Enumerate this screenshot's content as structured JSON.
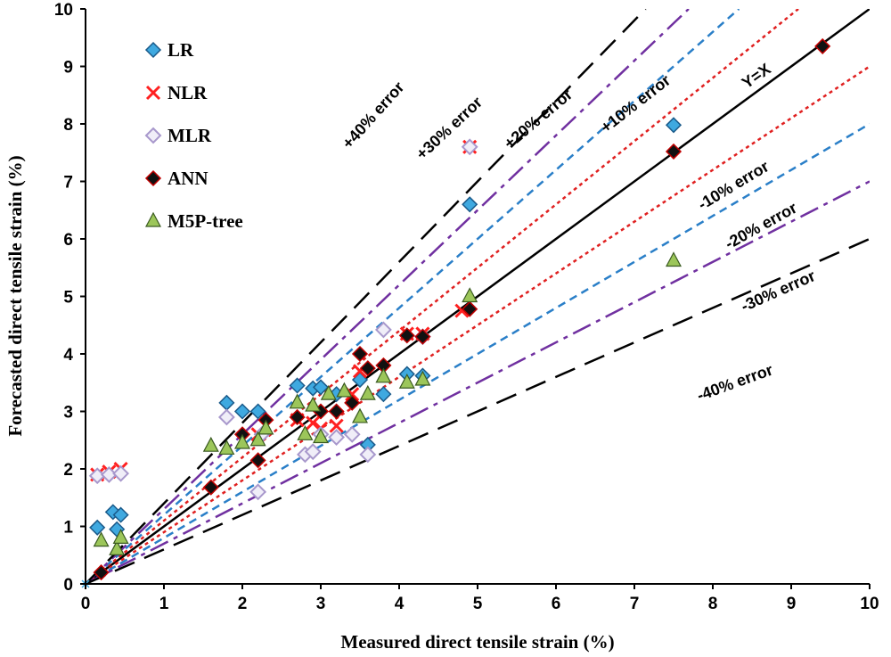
{
  "chart_data": {
    "type": "scatter",
    "title": "",
    "xlabel": "Measured direct tensile strain (%)",
    "ylabel": "Forecasted direct tensile strain (%)",
    "xlim": [
      0,
      10
    ],
    "ylim": [
      0,
      10
    ],
    "xticks": [
      "0",
      "1",
      "2",
      "3",
      "4",
      "5",
      "6",
      "7",
      "8",
      "9",
      "10"
    ],
    "yticks": [
      "0",
      "1",
      "2",
      "3",
      "4",
      "5",
      "6",
      "7",
      "8",
      "9",
      "10"
    ],
    "grid": false,
    "legend_position": "top-left",
    "reference_lines": [
      {
        "label": "Y=X",
        "slope": 1.0,
        "style": "solid",
        "color": "#000000"
      },
      {
        "label": "+10% error",
        "slope": 1.1,
        "style": "dotted",
        "color": "#e02020"
      },
      {
        "label": "-10% error",
        "slope": 0.9,
        "style": "dotted",
        "color": "#e02020"
      },
      {
        "label": "+20% error",
        "slope": 1.2,
        "style": "dashed-short",
        "color": "#2a7fc8"
      },
      {
        "label": "-20% error",
        "slope": 0.8,
        "style": "dashed-short",
        "color": "#2a7fc8"
      },
      {
        "label": "+30% error",
        "slope": 1.3,
        "style": "dash-dot",
        "color": "#7030a0"
      },
      {
        "label": "-30% error",
        "slope": 0.7,
        "style": "dash-dot",
        "color": "#7030a0"
      },
      {
        "label": "+40% error",
        "slope": 1.4,
        "style": "dashed-long",
        "color": "#000000"
      },
      {
        "label": "-40% error",
        "slope": 0.6,
        "style": "dashed-long",
        "color": "#000000"
      }
    ],
    "series": [
      {
        "name": "LR",
        "marker": "diamond",
        "color": "#3fa9e0",
        "points": [
          [
            0.15,
            0.98
          ],
          [
            0.35,
            1.25
          ],
          [
            0.45,
            1.2
          ],
          [
            0.4,
            0.95
          ],
          [
            1.8,
            3.15
          ],
          [
            2.0,
            3.0
          ],
          [
            2.2,
            3.0
          ],
          [
            2.7,
            3.45
          ],
          [
            2.9,
            3.4
          ],
          [
            3.0,
            3.42
          ],
          [
            3.2,
            3.3
          ],
          [
            3.5,
            3.55
          ],
          [
            3.6,
            2.42
          ],
          [
            3.8,
            3.3
          ],
          [
            4.1,
            3.65
          ],
          [
            4.3,
            3.62
          ],
          [
            4.9,
            6.6
          ],
          [
            7.5,
            7.98
          ]
        ]
      },
      {
        "name": "NLR",
        "marker": "x",
        "color": "#ff2020",
        "points": [
          [
            0.15,
            1.9
          ],
          [
            0.3,
            1.95
          ],
          [
            0.45,
            2.0
          ],
          [
            2.2,
            2.6
          ],
          [
            2.7,
            2.85
          ],
          [
            2.9,
            2.8
          ],
          [
            3.0,
            2.7
          ],
          [
            3.2,
            2.75
          ],
          [
            3.4,
            3.3
          ],
          [
            3.5,
            3.7
          ],
          [
            4.1,
            4.35
          ],
          [
            4.3,
            4.35
          ],
          [
            4.8,
            4.75
          ],
          [
            4.9,
            7.6
          ]
        ]
      },
      {
        "name": "MLR",
        "marker": "diamond-open",
        "color": "#a898cc",
        "points": [
          [
            0.15,
            1.88
          ],
          [
            0.3,
            1.9
          ],
          [
            0.45,
            1.92
          ],
          [
            1.8,
            2.9
          ],
          [
            2.2,
            1.6
          ],
          [
            2.25,
            2.6
          ],
          [
            2.8,
            2.25
          ],
          [
            2.9,
            2.3
          ],
          [
            3.0,
            2.6
          ],
          [
            3.2,
            2.55
          ],
          [
            3.4,
            2.6
          ],
          [
            3.6,
            2.25
          ],
          [
            3.8,
            4.42
          ],
          [
            4.3,
            4.3
          ],
          [
            4.9,
            7.6
          ]
        ]
      },
      {
        "name": "ANN",
        "marker": "diamond",
        "color": "#111111",
        "points": [
          [
            0.2,
            0.2
          ],
          [
            1.6,
            1.68
          ],
          [
            2.0,
            2.6
          ],
          [
            2.2,
            2.15
          ],
          [
            2.3,
            2.85
          ],
          [
            2.7,
            2.9
          ],
          [
            3.0,
            3.0
          ],
          [
            3.2,
            3.0
          ],
          [
            3.4,
            3.15
          ],
          [
            3.5,
            4.0
          ],
          [
            3.6,
            3.75
          ],
          [
            3.8,
            3.8
          ],
          [
            4.1,
            4.32
          ],
          [
            4.3,
            4.3
          ],
          [
            4.9,
            4.78
          ],
          [
            7.5,
            7.52
          ],
          [
            9.4,
            9.35
          ]
        ]
      },
      {
        "name": "M5P-tree",
        "marker": "triangle",
        "color": "#9cc65a",
        "points": [
          [
            0.2,
            0.75
          ],
          [
            0.4,
            0.6
          ],
          [
            0.45,
            0.8
          ],
          [
            1.6,
            2.4
          ],
          [
            1.8,
            2.35
          ],
          [
            2.0,
            2.45
          ],
          [
            2.2,
            2.5
          ],
          [
            2.3,
            2.7
          ],
          [
            2.7,
            3.15
          ],
          [
            2.8,
            2.6
          ],
          [
            2.9,
            3.1
          ],
          [
            3.0,
            2.55
          ],
          [
            3.1,
            3.3
          ],
          [
            3.3,
            3.35
          ],
          [
            3.5,
            2.9
          ],
          [
            3.6,
            3.3
          ],
          [
            3.8,
            3.6
          ],
          [
            4.1,
            3.5
          ],
          [
            4.3,
            3.55
          ],
          [
            4.9,
            5.0
          ],
          [
            7.5,
            5.62
          ]
        ]
      }
    ]
  },
  "annotations": {
    "y_eq_x": "Y=X",
    "p10": "+10% error",
    "m10": "-10% error",
    "p20": "+20% error",
    "m20": "-20% error",
    "p30": "+30% error",
    "m30": "-30% error",
    "p40": "+40% error",
    "m40": "-40% error"
  }
}
